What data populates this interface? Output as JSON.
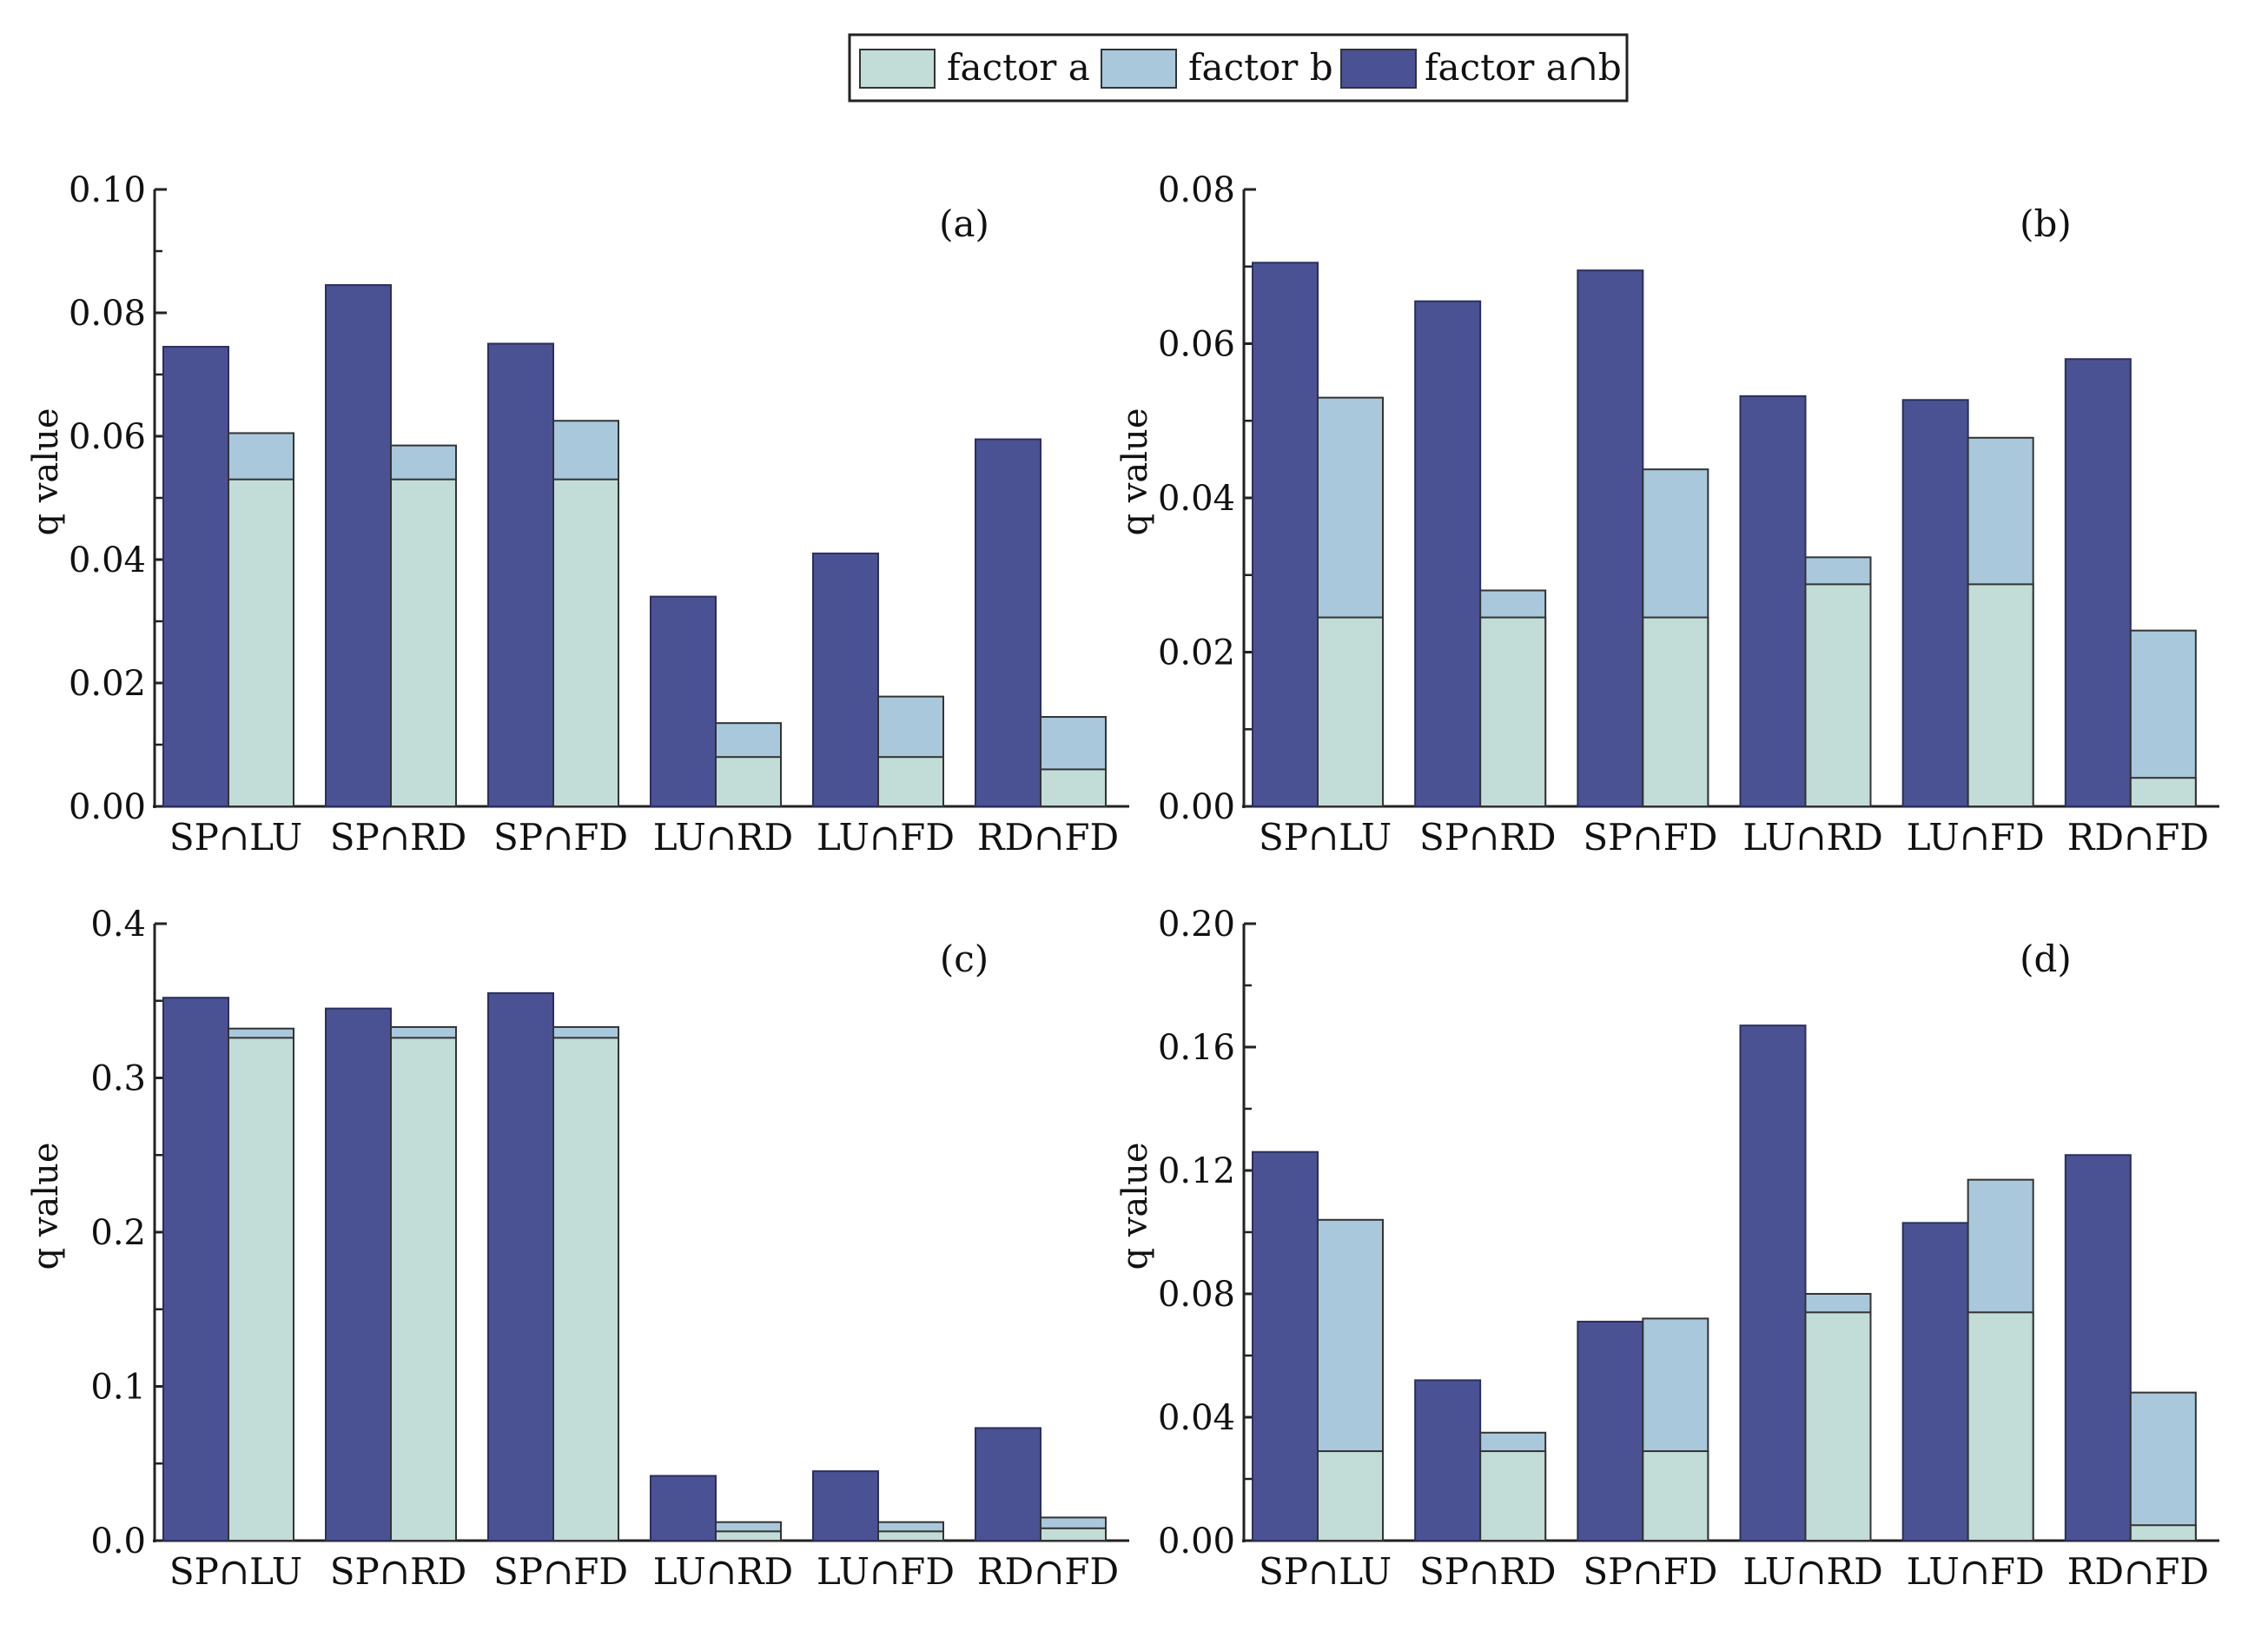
{
  "legend": {
    "items": [
      {
        "label": "factor a",
        "color": "#c2dcd8"
      },
      {
        "label": "factor b",
        "color": "#a9c8dc"
      },
      {
        "label": "factor a∩b",
        "color": "#4a5294"
      }
    ]
  },
  "colors": {
    "factor_a": "#c2dcd8",
    "factor_b": "#a9c8dc",
    "interaction": "#4a5294",
    "stroke": "#333333"
  },
  "chart_data": [
    {
      "type": "bar",
      "panel": "(a)",
      "ylabel": "q value",
      "ylim": [
        0,
        0.1
      ],
      "ticks": [
        "0.00",
        "0.02",
        "0.04",
        "0.06",
        "0.08",
        "0.10"
      ],
      "categories": [
        "SP∩LU",
        "SP∩RD",
        "SP∩FD",
        "LU∩RD",
        "LU∩FD",
        "RD∩FD"
      ],
      "series": [
        {
          "name": "factor a∩b",
          "values": [
            0.0745,
            0.0845,
            0.075,
            0.034,
            0.041,
            0.0595
          ]
        },
        {
          "name": "factor b",
          "values": [
            0.0605,
            0.0585,
            0.0625,
            0.0135,
            0.0178,
            0.0145
          ]
        },
        {
          "name": "factor a",
          "values": [
            0.053,
            0.053,
            0.053,
            0.008,
            0.008,
            0.006
          ]
        }
      ]
    },
    {
      "type": "bar",
      "panel": "(b)",
      "ylabel": "q value",
      "ylim": [
        0,
        0.08
      ],
      "ticks": [
        "0.00",
        "0.02",
        "0.04",
        "0.06",
        "0.08"
      ],
      "categories": [
        "SP∩LU",
        "SP∩RD",
        "SP∩FD",
        "LU∩RD",
        "LU∩FD",
        "RD∩FD"
      ],
      "series": [
        {
          "name": "factor a∩b",
          "values": [
            0.0705,
            0.0655,
            0.0695,
            0.0532,
            0.0527,
            0.058
          ]
        },
        {
          "name": "factor b",
          "values": [
            0.053,
            0.028,
            0.0437,
            0.0323,
            0.0478,
            0.0228
          ]
        },
        {
          "name": "factor a",
          "values": [
            0.0245,
            0.0245,
            0.0245,
            0.0288,
            0.0288,
            0.0037
          ]
        }
      ]
    },
    {
      "type": "bar",
      "panel": "(c)",
      "ylabel": "q value",
      "ylim": [
        0,
        0.4
      ],
      "ticks": [
        "0.0",
        "0.1",
        "0.2",
        "0.3",
        "0.4"
      ],
      "categories": [
        "SP∩LU",
        "SP∩RD",
        "SP∩FD",
        "LU∩RD",
        "LU∩FD",
        "RD∩FD"
      ],
      "series": [
        {
          "name": "factor a∩b",
          "values": [
            0.352,
            0.345,
            0.355,
            0.042,
            0.045,
            0.073
          ]
        },
        {
          "name": "factor b",
          "values": [
            0.332,
            0.333,
            0.333,
            0.012,
            0.012,
            0.015
          ]
        },
        {
          "name": "factor a",
          "values": [
            0.326,
            0.326,
            0.326,
            0.006,
            0.006,
            0.008
          ]
        }
      ]
    },
    {
      "type": "bar",
      "panel": "(d)",
      "ylabel": "q value",
      "ylim": [
        0,
        0.2
      ],
      "ticks": [
        "0.00",
        "0.04",
        "0.08",
        "0.12",
        "0.16",
        "0.20"
      ],
      "categories": [
        "SP∩LU",
        "SP∩RD",
        "SP∩FD",
        "LU∩RD",
        "LU∩FD",
        "RD∩FD"
      ],
      "series": [
        {
          "name": "factor a∩b",
          "values": [
            0.126,
            0.052,
            0.071,
            0.167,
            0.103,
            0.125
          ]
        },
        {
          "name": "factor b",
          "values": [
            0.104,
            0.035,
            0.072,
            0.08,
            0.117,
            0.048
          ]
        },
        {
          "name": "factor a",
          "values": [
            0.029,
            0.029,
            0.029,
            0.074,
            0.074,
            0.005
          ]
        }
      ]
    }
  ]
}
